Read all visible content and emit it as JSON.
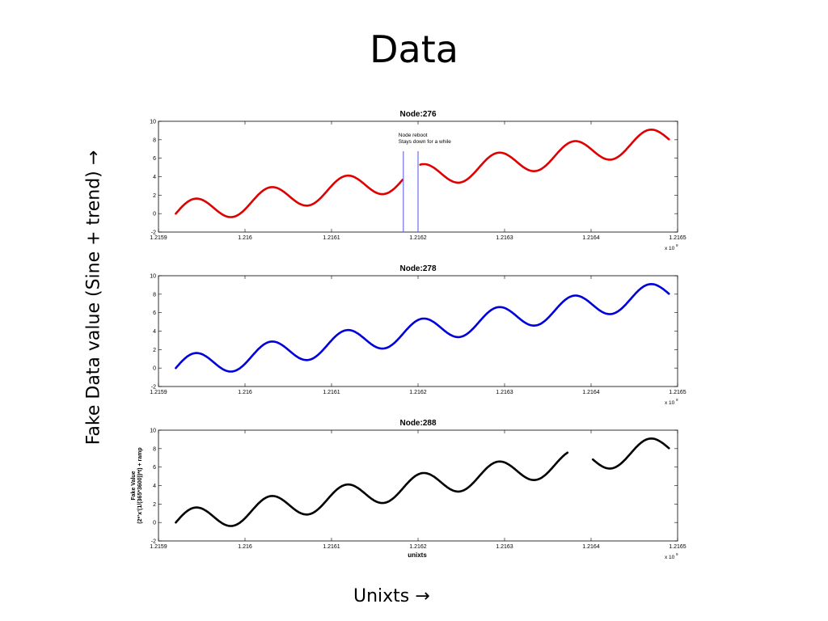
{
  "slide": {
    "title": "Data",
    "y_caption": "Fake Data value (Sine + trend) →",
    "x_caption": "Unixts  →"
  },
  "chart_data": [
    {
      "type": "line",
      "title": "Node:276",
      "color": "#e00000",
      "xlim": [
        1.2159,
        1.2165
      ],
      "ylim": [
        -2,
        10
      ],
      "x_ticks": [
        "1.2159",
        "1.216",
        "1.2161",
        "1.2162",
        "1.2163",
        "1.2164",
        "1.2165"
      ],
      "y_ticks": [
        "-2",
        "0",
        "2",
        "4",
        "6",
        "8",
        "10"
      ],
      "x_exponent": "x 10",
      "x_exponent_power": "9",
      "xlabel": "",
      "ylabel": "",
      "series": [
        {
          "x_range": [
            1.21592,
            1.21649
          ],
          "gaps": [
            [
              1.216183,
              1.216202
            ]
          ],
          "formula": "2*sin(2*pi*(1/(365*3600))*t) + ramp",
          "period": 8.76e-05,
          "amplitude": 0.65,
          "ramp": [
            0,
            8.1
          ]
        }
      ],
      "annotation": {
        "text": "Node reboot",
        "text2": "Stays down for a while",
        "x": 1.216183,
        "lines": [
          1.216183,
          1.2162
        ]
      }
    },
    {
      "type": "line",
      "title": "Node:278",
      "color": "#0000dd",
      "xlim": [
        1.2159,
        1.2165
      ],
      "ylim": [
        -2,
        10
      ],
      "x_ticks": [
        "1.2159",
        "1.216",
        "1.2161",
        "1.2162",
        "1.2163",
        "1.2164",
        "1.2165"
      ],
      "y_ticks": [
        "-2",
        "0",
        "2",
        "4",
        "6",
        "8",
        "10"
      ],
      "x_exponent": "x 10",
      "x_exponent_power": "9",
      "xlabel": "",
      "ylabel": "",
      "series": [
        {
          "x_range": [
            1.21592,
            1.21649
          ],
          "gaps": [],
          "formula": "2*sin(2*pi*(1/(365*3600))*t) + ramp",
          "period": 8.76e-05,
          "amplitude": 0.65,
          "ramp": [
            0,
            8.1
          ]
        }
      ]
    },
    {
      "type": "line",
      "title": "Node:288",
      "color": "#000000",
      "xlim": [
        1.2159,
        1.2165
      ],
      "ylim": [
        -2,
        10
      ],
      "x_ticks": [
        "1.2159",
        "1.216",
        "1.2161",
        "1.2162",
        "1.2163",
        "1.2164",
        "1.2165"
      ],
      "y_ticks": [
        "-2",
        "0",
        "2",
        "4",
        "6",
        "8",
        "10"
      ],
      "x_exponent": "x 10",
      "x_exponent_power": "9",
      "xlabel": "unixts",
      "ylabel": "Fake Value",
      "ylabel2": "(2*­­x(1/(365*3600))*t) + ramp",
      "ylabel2_text": "(2*’x’(1/(365*3600))*t) + ramp",
      "series": [
        {
          "x_range": [
            1.21592,
            1.21649
          ],
          "gaps": [
            [
              1.216373,
              1.216402
            ]
          ],
          "formula": "2*sin(2*pi*(1/(365*3600))*t) + ramp",
          "period": 8.76e-05,
          "amplitude": 0.65,
          "ramp": [
            0,
            8.1
          ]
        }
      ]
    }
  ]
}
